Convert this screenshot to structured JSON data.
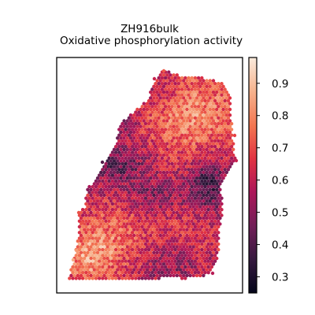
{
  "chart_data": {
    "type": "scatter",
    "title": "ZH916bulk",
    "subtitle": "Oxidative phosphorylation activity",
    "xlabel": "",
    "ylabel": "",
    "colorbar": {
      "range": [
        0.25,
        0.98
      ],
      "ticks": [
        "0.3",
        "0.4",
        "0.5",
        "0.6",
        "0.7",
        "0.8",
        "0.9"
      ],
      "tick_values": [
        0.3,
        0.4,
        0.5,
        0.6,
        0.7,
        0.8,
        0.9
      ],
      "colormap": "rocket",
      "colormap_stops": [
        "#03051a",
        "#35193e",
        "#701f57",
        "#ad1759",
        "#e13342",
        "#f37651",
        "#f6b48f",
        "#faebdd"
      ],
      "location": "right"
    },
    "axis_ticks_visible": false,
    "grid": false,
    "tissue_spots": {
      "description_free": true,
      "value_range": [
        0.25,
        0.98
      ],
      "regions": [
        {
          "name": "upper-lobe",
          "mean_value": 0.8
        },
        {
          "name": "middle-band",
          "mean_value": 0.55
        },
        {
          "name": "dark-pocket-right",
          "mean_value": 0.3
        },
        {
          "name": "lower-left-lobe",
          "mean_value": 0.85
        },
        {
          "name": "lower-right",
          "mean_value": 0.62
        }
      ]
    }
  }
}
